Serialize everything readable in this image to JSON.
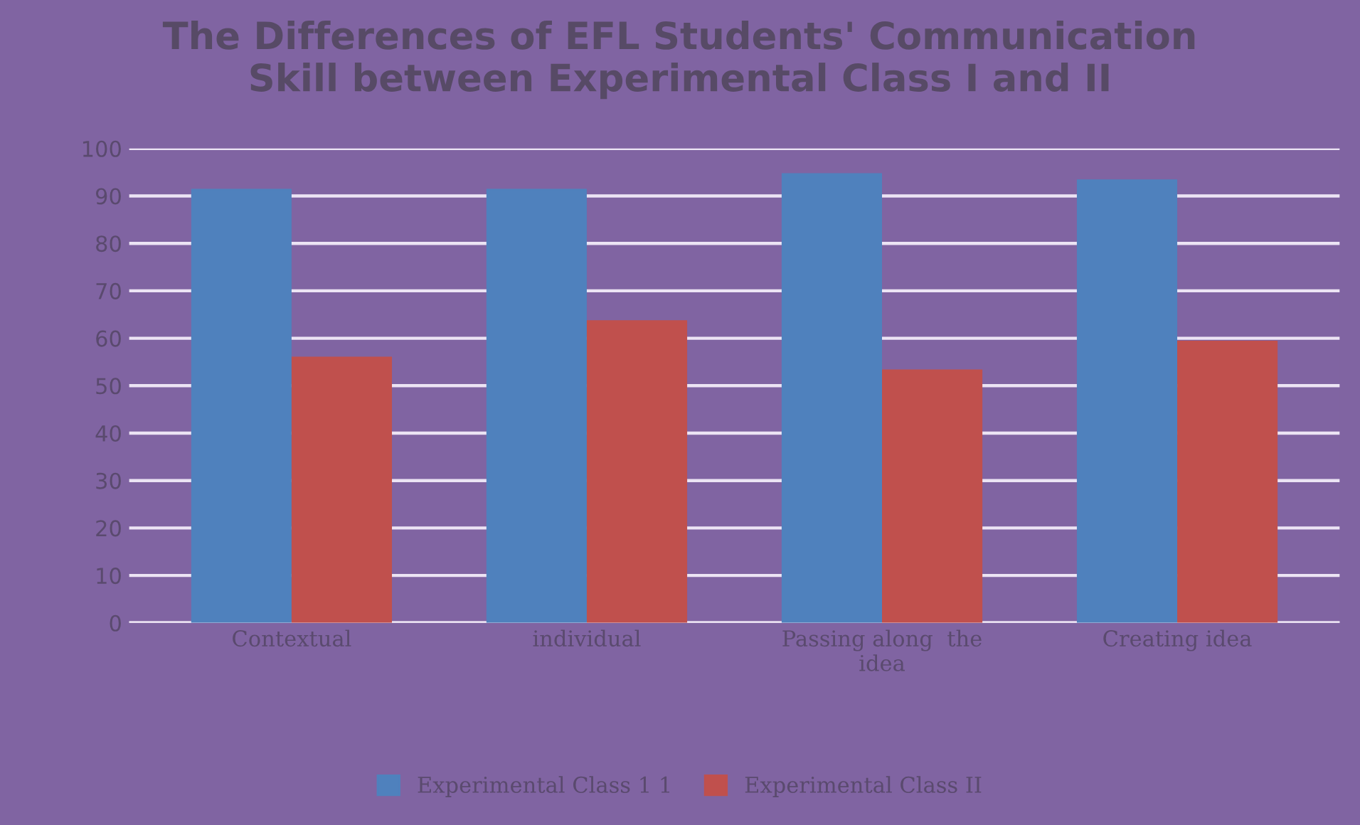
{
  "chart_data": {
    "type": "bar",
    "title": "The Differences of EFL Students' Communication\nSkill between Experimental Class I and II",
    "categories": [
      "Contextual",
      "individual",
      "Passing along  the\nidea",
      "Creating idea"
    ],
    "series": [
      {
        "name": "Experimental Class 1 1",
        "color": "#4f81bd",
        "values": [
          91.5,
          91.5,
          94.8,
          93.5
        ]
      },
      {
        "name": "Experimental Class II",
        "color": "#c0504d",
        "values": [
          56.1,
          63.8,
          53.4,
          59.5
        ]
      }
    ],
    "ylim": [
      0,
      100
    ],
    "yticks": [
      0,
      10,
      20,
      30,
      40,
      50,
      60,
      70,
      80,
      90,
      100
    ],
    "grid": "y",
    "legend": "bottom"
  }
}
